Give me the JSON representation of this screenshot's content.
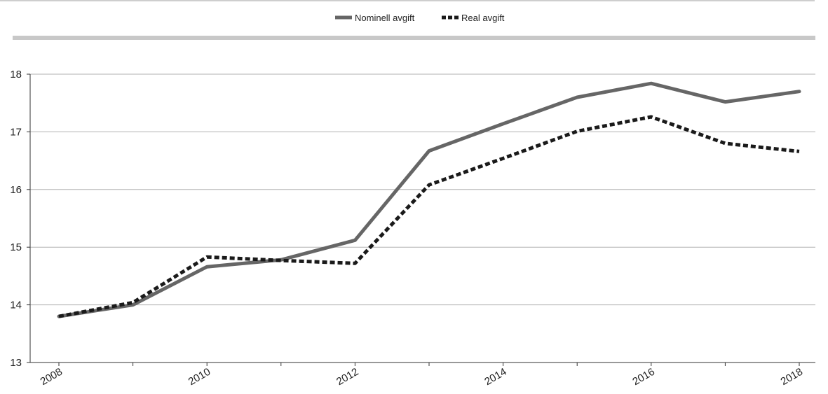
{
  "chart_data": {
    "type": "line",
    "title": "",
    "xlabel": "",
    "ylabel": "",
    "x": [
      2008,
      2009,
      2010,
      2011,
      2012,
      2013,
      2014,
      2015,
      2016,
      2017,
      2018
    ],
    "x_tick_labels": [
      "2008",
      "2010",
      "2012",
      "2014",
      "2016",
      "2018"
    ],
    "y_tick_labels": [
      "13",
      "14",
      "15",
      "16",
      "17",
      "18"
    ],
    "xlim": [
      2008,
      2018
    ],
    "ylim": [
      13,
      18
    ],
    "grid": "horizontal",
    "legend": "top-center",
    "series": [
      {
        "name": "Nominell avgift",
        "style": "solid",
        "color": "#666666",
        "values": [
          13.8,
          14.0,
          14.66,
          14.78,
          15.12,
          16.67,
          17.14,
          17.6,
          17.84,
          17.52,
          17.7
        ]
      },
      {
        "name": "Real avgift",
        "style": "dashed",
        "color": "#1a1a1a",
        "values": [
          13.8,
          14.04,
          14.83,
          14.77,
          14.72,
          16.08,
          16.54,
          17.01,
          17.26,
          16.8,
          16.66
        ]
      }
    ]
  }
}
